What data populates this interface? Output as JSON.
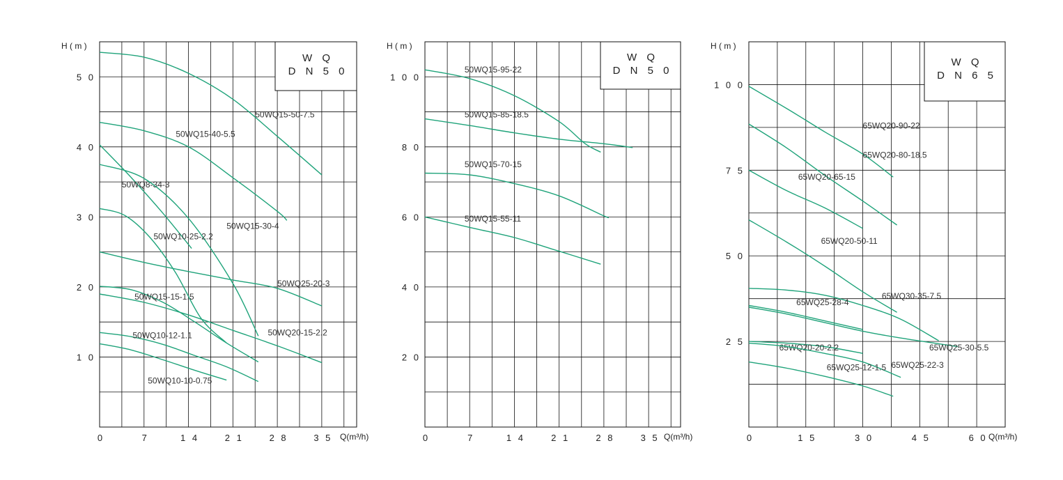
{
  "colors": {
    "curve": "#1fa37a",
    "grid": "#111111",
    "text": "#222222"
  },
  "chart_data": [
    {
      "type": "line",
      "ylabel": "H ( m )",
      "xlabel": "Q(m³/h)",
      "box": [
        "W Q",
        "D N 5 0"
      ],
      "xlim": [
        0,
        40.5
      ],
      "ylim": [
        0,
        55
      ],
      "xticks": [
        0,
        7,
        14,
        21,
        28,
        35
      ],
      "xtick_labels": [
        "0",
        "7",
        "1 4",
        "2 1",
        "2 8",
        "3 5"
      ],
      "yticks": [
        10,
        20,
        30,
        40,
        50
      ],
      "ytick_labels": [
        "1 0",
        "2 0",
        "3 0",
        "4 0",
        "5 0"
      ],
      "vgrid": [
        3.5,
        7,
        10.5,
        14,
        17.5,
        21,
        24.5,
        28,
        31.5,
        35,
        38.5
      ],
      "hgrid": [
        5,
        10,
        15,
        20,
        25,
        30,
        35,
        40,
        45,
        50
      ],
      "grid": true,
      "series": [
        {
          "name": "50WQ15-50-7.5",
          "x": [
            0,
            7,
            14,
            21,
            28,
            35
          ],
          "y": [
            53.5,
            52.8,
            50.5,
            46.8,
            41.5,
            36
          ],
          "label_at": [
            24.5,
            44.2
          ]
        },
        {
          "name": "50WQ15-40-5.5",
          "x": [
            0,
            7,
            14,
            21,
            28,
            29.5
          ],
          "y": [
            43.5,
            42.3,
            40,
            35.6,
            30.8,
            29.5
          ],
          "label_at": [
            12,
            41.4
          ]
        },
        {
          "name": "50WQ8-34-3",
          "x": [
            0,
            5,
            10,
            14.5
          ],
          "y": [
            40.3,
            35.6,
            30.5,
            25.5
          ],
          "label_at": [
            3.5,
            34.2
          ]
        },
        {
          "name": "50WQ15-30-4",
          "x": [
            0,
            7,
            14,
            21,
            25
          ],
          "y": [
            37.5,
            35.5,
            29.8,
            20.5,
            13
          ],
          "label_at": [
            20,
            28.3
          ]
        },
        {
          "name": "50WQ10-25-2.2",
          "x": [
            0,
            4,
            8,
            12,
            16,
            20
          ],
          "y": [
            31.2,
            30.2,
            27,
            22,
            15.5,
            12
          ],
          "label_at": [
            8.5,
            26.8
          ]
        },
        {
          "name": "50WQ25-20-3",
          "x": [
            0,
            7,
            14,
            21,
            28,
            35
          ],
          "y": [
            25,
            23.5,
            22.2,
            21,
            19.8,
            17.3
          ],
          "label_at": [
            28,
            20.1
          ]
        },
        {
          "name": "50WQ15-15-1.5",
          "x": [
            0,
            5,
            10,
            15,
            20,
            25
          ],
          "y": [
            20.1,
            19.6,
            17.8,
            15,
            12,
            9.3
          ],
          "label_at": [
            5.5,
            18.2
          ]
        },
        {
          "name": "50WQ20-15-2.2",
          "x": [
            0,
            7,
            14,
            21,
            28,
            35
          ],
          "y": [
            19,
            17.8,
            16,
            13.8,
            11.6,
            9.2
          ],
          "label_at": [
            26.5,
            13.1
          ]
        },
        {
          "name": "50WQ10-12-1.1",
          "x": [
            0,
            5,
            10,
            15,
            20,
            25
          ],
          "y": [
            13.5,
            12.9,
            11.8,
            10.2,
            8.6,
            6.5
          ],
          "label_at": [
            5.2,
            12.7
          ]
        },
        {
          "name": "50WQ10-10-0.75",
          "x": [
            0,
            5,
            10,
            15,
            20
          ],
          "y": [
            11.9,
            11,
            9.6,
            8.1,
            6.7
          ],
          "label_at": [
            7.6,
            6.2
          ]
        }
      ]
    },
    {
      "type": "line",
      "ylabel": "H ( m )",
      "xlabel": "Q(m³/h)",
      "box": [
        "W Q",
        "D N 5 0"
      ],
      "xlim": [
        0,
        40
      ],
      "ylim": [
        0,
        110
      ],
      "xticks": [
        0,
        7,
        14,
        21,
        28,
        35
      ],
      "xtick_labels": [
        "0",
        "7",
        "1 4",
        "2 1",
        "2 8",
        "3 5"
      ],
      "yticks": [
        20,
        40,
        60,
        80,
        100
      ],
      "ytick_labels": [
        "2 0",
        "4 0",
        "6 0",
        "8 0",
        "1 0 0"
      ],
      "vgrid": [
        3.5,
        7,
        10.5,
        14,
        17.5,
        21,
        24.5,
        28,
        31.5,
        35,
        38.5
      ],
      "hgrid": [
        10,
        20,
        30,
        40,
        50,
        60,
        70,
        80,
        90,
        100
      ],
      "grid": true,
      "series": [
        {
          "name": "50WQ15-95-22",
          "x": [
            0,
            7,
            14,
            21,
            25,
            27.5
          ],
          "y": [
            102,
            99.5,
            94.6,
            87.2,
            81,
            78.5
          ],
          "label_at": [
            6.2,
            101.2
          ]
        },
        {
          "name": "50WQ15-85-18.5",
          "x": [
            0,
            7,
            14,
            21,
            28,
            32.5
          ],
          "y": [
            88,
            86.1,
            84,
            82.2,
            80.9,
            79.8
          ],
          "label_at": [
            6.2,
            88.4
          ]
        },
        {
          "name": "50WQ15-70-15",
          "x": [
            0,
            7,
            14,
            21,
            28,
            28.5
          ],
          "y": [
            72.5,
            72,
            69.5,
            66,
            60.3,
            60
          ],
          "label_at": [
            6.2,
            74.2
          ]
        },
        {
          "name": "50WQ15-55-11",
          "x": [
            0,
            7,
            14,
            21,
            27.5
          ],
          "y": [
            60,
            57,
            54.1,
            50.2,
            46.5
          ],
          "label_at": [
            6.2,
            58.7
          ]
        }
      ]
    },
    {
      "type": "line",
      "ylabel": "H ( m )",
      "xlabel": "Q(m³/h)",
      "box": [
        "W Q",
        "D N 6 5"
      ],
      "xlim": [
        0,
        67.5
      ],
      "ylim": [
        0,
        112.5
      ],
      "xticks": [
        0,
        15,
        30,
        45,
        60
      ],
      "xtick_labels": [
        "0",
        "1 5",
        "3 0",
        "4 5",
        "6 0"
      ],
      "yticks": [
        25,
        50,
        75,
        100
      ],
      "ytick_labels": [
        "2 5",
        "5 0",
        "7 5",
        "1 0 0"
      ],
      "vgrid": [
        7.5,
        15,
        22.5,
        30,
        37.5,
        45,
        52.5,
        60
      ],
      "hgrid": [
        12.5,
        25,
        37.5,
        50,
        62.5,
        75,
        87.5,
        100
      ],
      "grid": true,
      "series": [
        {
          "name": "65WQ20-90-22",
          "x": [
            0,
            10,
            20,
            30,
            38
          ],
          "y": [
            99.5,
            93,
            86.2,
            79.7,
            73
          ],
          "label_at": [
            30,
            87.2
          ]
        },
        {
          "name": "65WQ20-80-18.5",
          "x": [
            0,
            10,
            20,
            30,
            39
          ],
          "y": [
            88.5,
            81.5,
            73.5,
            66,
            59
          ],
          "label_at": [
            30,
            78.6
          ]
        },
        {
          "name": "65WQ20-65-15",
          "x": [
            0,
            10,
            20,
            30
          ],
          "y": [
            75,
            69,
            64,
            58
          ],
          "label_at": [
            13,
            72.2
          ]
        },
        {
          "name": "65WQ20-50-11",
          "x": [
            0,
            10,
            20,
            30,
            39
          ],
          "y": [
            60.5,
            54,
            47,
            39.5,
            33.5
          ],
          "label_at": [
            19,
            53.5
          ]
        },
        {
          "name": "65WQ30-35-7.5",
          "x": [
            0,
            10,
            20,
            30,
            40,
            50
          ],
          "y": [
            40.5,
            40,
            38.5,
            35.5,
            31.5,
            25.2
          ],
          "label_at": [
            35,
            37.4
          ]
        },
        {
          "name": "65WQ25-28-4",
          "x": [
            0,
            10,
            20,
            30
          ],
          "y": [
            35.5,
            33.5,
            31,
            28.5
          ],
          "label_at": [
            12.5,
            35.6
          ]
        },
        {
          "name": "65WQ25-30-5.5",
          "x": [
            0,
            10,
            20,
            30,
            40,
            55
          ],
          "y": [
            35,
            33,
            30.5,
            28,
            26,
            23.5
          ],
          "label_at": [
            47.5,
            22.4
          ]
        },
        {
          "name": "65WQ20-20-2.2",
          "x": [
            0,
            10,
            20,
            30
          ],
          "y": [
            25,
            24.5,
            23.5,
            21.5
          ],
          "label_at": [
            8,
            22.4
          ]
        },
        {
          "name": "65WQ25-22-3",
          "x": [
            0,
            10,
            20,
            30,
            40
          ],
          "y": [
            24.5,
            23.5,
            21.5,
            19,
            14.5
          ],
          "label_at": [
            37.5,
            17.3
          ]
        },
        {
          "name": "65WQ25-12-1.5",
          "x": [
            0,
            10,
            20,
            30,
            38
          ],
          "y": [
            19,
            17.2,
            14.8,
            12,
            9
          ],
          "label_at": [
            20.5,
            16.6
          ]
        }
      ]
    }
  ]
}
